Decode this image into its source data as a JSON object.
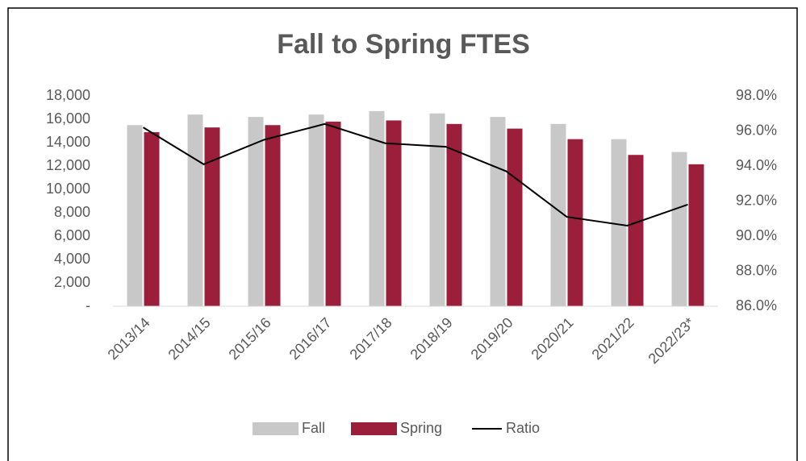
{
  "chart_data": {
    "type": "bar_line",
    "title": "Fall to Spring FTES",
    "categories": [
      "2013/14",
      "2014/15",
      "2015/16",
      "2016/17",
      "2017/18",
      "2018/19",
      "2019/20",
      "2020/21",
      "2021/22",
      "2022/23*"
    ],
    "series": [
      {
        "name": "Fall",
        "color": "#c8c8c8",
        "values": [
          15500,
          16400,
          16200,
          16400,
          16700,
          16500,
          16200,
          15600,
          14300,
          13200
        ]
      },
      {
        "name": "Spring",
        "color": "#9b1f3a",
        "values": [
          14900,
          15300,
          15500,
          15800,
          15900,
          15600,
          15200,
          14300,
          12950,
          12150
        ]
      },
      {
        "name": "Ratio",
        "color": "#000000",
        "axis": "y2",
        "values": [
          96.2,
          94.1,
          95.5,
          96.4,
          95.3,
          95.1,
          93.7,
          91.1,
          90.6,
          91.8
        ]
      }
    ],
    "ylim": [
      0,
      18000
    ],
    "yticks": [
      {
        "value": 0,
        "label": "-"
      },
      {
        "value": 2000,
        "label": "2,000"
      },
      {
        "value": 4000,
        "label": "4,000"
      },
      {
        "value": 6000,
        "label": "6,000"
      },
      {
        "value": 8000,
        "label": "8,000"
      },
      {
        "value": 10000,
        "label": "10,000"
      },
      {
        "value": 12000,
        "label": "12,000"
      },
      {
        "value": 14000,
        "label": "14,000"
      },
      {
        "value": 16000,
        "label": "16,000"
      },
      {
        "value": 18000,
        "label": "18,000"
      }
    ],
    "y2lim": [
      86,
      98
    ],
    "y2ticks": [
      {
        "value": 86,
        "label": "86.0%"
      },
      {
        "value": 88,
        "label": "88.0%"
      },
      {
        "value": 90,
        "label": "90.0%"
      },
      {
        "value": 92,
        "label": "92.0%"
      },
      {
        "value": 94,
        "label": "94.0%"
      },
      {
        "value": 96,
        "label": "96.0%"
      },
      {
        "value": 98,
        "label": "98.0%"
      }
    ],
    "grid": false,
    "legend": "bottom"
  }
}
